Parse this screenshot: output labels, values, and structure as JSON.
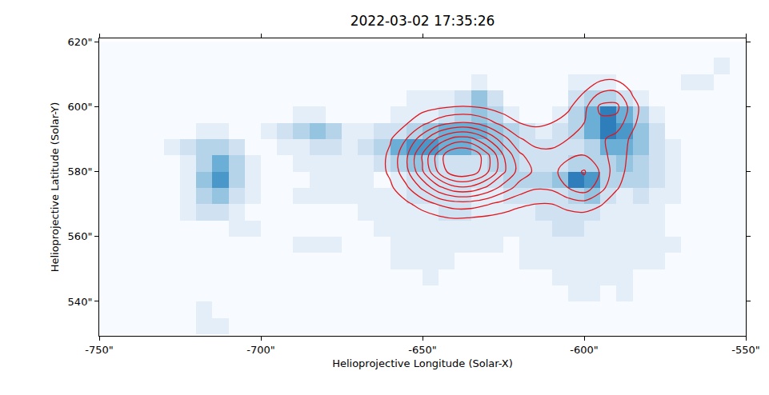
{
  "chart_data": {
    "type": "heatmap",
    "title": "2022-03-02 17:35:26",
    "x_label": "Helioprojective Longitude (Solar-X)",
    "y_label": "Helioprojective Latitude (Solar-Y)",
    "xlim": [
      -750,
      -550
    ],
    "ylim": [
      529.4,
      621
    ],
    "xticks": [
      {
        "value": -750,
        "label": "-750\""
      },
      {
        "value": -700,
        "label": "-700\""
      },
      {
        "value": -650,
        "label": "-650\""
      },
      {
        "value": -600,
        "label": "-600\""
      },
      {
        "value": -550,
        "label": "-550\""
      }
    ],
    "yticks": [
      {
        "value": 540,
        "label": "540\""
      },
      {
        "value": 560,
        "label": "560\""
      },
      {
        "value": 580,
        "label": "580\""
      },
      {
        "value": 600,
        "label": "600\""
      },
      {
        "value": 620,
        "label": "620\""
      }
    ],
    "grid": false,
    "heatmap": {
      "zlim": [
        0,
        10
      ],
      "x": [
        -747.5,
        -742.5,
        -737.5,
        -732.5,
        -727.5,
        -722.5,
        -717.5,
        -712.5,
        -707.5,
        -702.5,
        -697.5,
        -692.5,
        -687.5,
        -682.5,
        -677.5,
        -672.5,
        -667.5,
        -662.5,
        -657.5,
        -652.5,
        -647.5,
        -642.5,
        -637.5,
        -632.5,
        -627.5,
        -622.5,
        -617.5,
        -612.5,
        -607.5,
        -602.5,
        -597.5,
        -592.5,
        -587.5,
        -582.5,
        -577.5,
        -572.5,
        -567.5,
        -562.5,
        -557.5,
        -552.5
      ],
      "y": [
        532.5,
        537.5,
        542.5,
        547.5,
        552.5,
        557.5,
        562.5,
        567.5,
        572.5,
        577.5,
        582.5,
        587.5,
        592.5,
        597.5,
        602.5,
        607.5,
        612.5,
        617.5
      ],
      "z": [
        [
          0,
          0,
          0,
          0,
          0,
          0,
          1,
          1,
          0,
          0,
          0,
          0,
          0,
          0,
          0,
          0,
          0,
          0,
          0,
          0,
          0,
          0,
          0,
          0,
          0,
          0,
          0,
          0,
          0,
          0,
          0,
          0,
          0,
          0,
          0,
          0,
          0,
          0,
          0,
          0
        ],
        [
          0,
          0,
          0,
          0,
          0,
          0,
          1,
          0,
          0,
          0,
          0,
          0,
          0,
          0,
          0,
          0,
          0,
          0,
          0,
          0,
          0,
          0,
          0,
          0,
          0,
          0,
          0,
          0,
          0,
          0,
          0,
          0,
          0,
          0,
          0,
          0,
          0,
          0,
          0,
          0
        ],
        [
          0,
          0,
          0,
          0,
          0,
          0,
          0,
          0,
          0,
          0,
          0,
          0,
          0,
          0,
          0,
          0,
          0,
          0,
          0,
          0,
          0,
          0,
          0,
          0,
          0,
          0,
          0,
          0,
          0,
          1,
          1,
          0,
          1,
          0,
          0,
          0,
          0,
          0,
          0,
          0
        ],
        [
          0,
          0,
          0,
          0,
          0,
          0,
          0,
          0,
          0,
          0,
          0,
          0,
          0,
          0,
          0,
          0,
          0,
          0,
          0,
          0,
          1,
          0,
          0,
          0,
          0,
          0,
          0,
          0,
          1,
          1,
          1,
          1,
          1,
          0,
          0,
          0,
          0,
          0,
          0,
          0
        ],
        [
          0,
          0,
          0,
          0,
          0,
          0,
          0,
          0,
          0,
          0,
          0,
          0,
          0,
          0,
          0,
          0,
          0,
          0,
          1,
          1,
          1,
          1,
          0,
          0,
          0,
          0,
          1,
          1,
          1,
          1,
          1,
          1,
          1,
          1,
          1,
          0,
          0,
          0,
          0,
          0
        ],
        [
          0,
          0,
          0,
          0,
          0,
          0,
          0,
          0,
          0,
          0,
          0,
          0,
          1,
          1,
          1,
          0,
          0,
          0,
          1,
          1,
          1,
          1,
          1,
          1,
          1,
          0,
          1,
          1,
          1,
          1,
          1,
          1,
          1,
          1,
          1,
          1,
          0,
          0,
          0,
          0
        ],
        [
          0,
          0,
          0,
          0,
          0,
          0,
          0,
          0,
          1,
          1,
          0,
          0,
          0,
          0,
          0,
          0,
          0,
          1,
          1,
          1,
          1,
          1,
          1,
          1,
          1,
          1,
          1,
          1,
          2,
          2,
          1,
          1,
          1,
          1,
          1,
          0,
          0,
          0,
          0,
          0
        ],
        [
          0,
          0,
          0,
          0,
          0,
          1,
          2,
          2,
          1,
          0,
          0,
          0,
          0,
          0,
          0,
          0,
          1,
          1,
          1,
          1,
          1,
          2,
          2,
          1,
          1,
          1,
          1,
          2,
          2,
          2,
          2,
          1,
          1,
          1,
          1,
          0,
          0,
          0,
          0,
          0
        ],
        [
          0,
          0,
          0,
          0,
          0,
          1,
          3,
          4,
          2,
          1,
          0,
          0,
          1,
          1,
          1,
          1,
          1,
          1,
          1,
          2,
          2,
          2,
          2,
          1,
          1,
          2,
          2,
          2,
          2,
          3,
          4,
          2,
          1,
          2,
          1,
          1,
          0,
          0,
          0,
          0
        ],
        [
          0,
          0,
          0,
          0,
          0,
          1,
          4,
          6,
          3,
          1,
          0,
          0,
          0,
          1,
          1,
          1,
          1,
          0,
          1,
          2,
          2,
          2,
          2,
          2,
          2,
          3,
          3,
          3,
          4,
          7,
          6,
          3,
          3,
          3,
          2,
          1,
          0,
          0,
          0,
          0
        ],
        [
          0,
          0,
          0,
          0,
          0,
          1,
          3,
          5,
          3,
          1,
          0,
          0,
          1,
          1,
          1,
          1,
          1,
          2,
          3,
          4,
          3,
          2,
          2,
          2,
          3,
          3,
          2,
          2,
          2,
          3,
          3,
          3,
          4,
          3,
          2,
          1,
          0,
          0,
          0,
          0
        ],
        [
          0,
          0,
          0,
          0,
          1,
          2,
          3,
          3,
          2,
          0,
          0,
          1,
          1,
          2,
          2,
          1,
          2,
          3,
          5,
          6,
          6,
          5,
          5,
          4,
          4,
          3,
          2,
          2,
          2,
          2,
          3,
          5,
          5,
          4,
          2,
          1,
          0,
          0,
          0,
          0
        ],
        [
          0,
          0,
          0,
          0,
          0,
          0,
          1,
          1,
          0,
          0,
          1,
          2,
          3,
          4,
          3,
          1,
          1,
          2,
          2,
          3,
          4,
          5,
          5,
          5,
          4,
          3,
          2,
          1,
          2,
          3,
          5,
          7,
          6,
          4,
          2,
          0,
          0,
          0,
          0,
          0
        ],
        [
          0,
          0,
          0,
          0,
          0,
          0,
          0,
          0,
          0,
          0,
          0,
          0,
          1,
          1,
          0,
          0,
          0,
          0,
          1,
          1,
          1,
          2,
          3,
          4,
          3,
          1,
          0,
          0,
          1,
          3,
          5,
          7,
          5,
          3,
          1,
          0,
          0,
          0,
          0,
          0
        ],
        [
          0,
          0,
          0,
          0,
          0,
          0,
          0,
          0,
          0,
          0,
          0,
          0,
          0,
          0,
          0,
          0,
          0,
          0,
          0,
          1,
          1,
          1,
          2,
          4,
          2,
          0,
          0,
          0,
          0,
          2,
          3,
          3,
          2,
          1,
          0,
          0,
          0,
          0,
          0,
          0
        ],
        [
          0,
          0,
          0,
          0,
          0,
          0,
          0,
          0,
          0,
          0,
          0,
          0,
          0,
          0,
          0,
          0,
          0,
          0,
          0,
          0,
          0,
          0,
          0,
          1,
          0,
          0,
          0,
          0,
          0,
          1,
          1,
          1,
          0,
          0,
          0,
          0,
          1,
          1,
          0,
          0
        ],
        [
          0,
          0,
          0,
          0,
          0,
          0,
          0,
          0,
          0,
          0,
          0,
          0,
          0,
          0,
          0,
          0,
          0,
          0,
          0,
          0,
          0,
          0,
          0,
          0,
          0,
          0,
          0,
          0,
          0,
          0,
          0,
          0,
          0,
          0,
          0,
          0,
          0,
          0,
          1,
          0
        ],
        [
          0,
          0,
          0,
          0,
          0,
          0,
          0,
          0,
          0,
          0,
          0,
          0,
          0,
          0,
          0,
          0,
          0,
          0,
          0,
          0,
          0,
          0,
          0,
          0,
          0,
          0,
          0,
          0,
          0,
          0,
          0,
          0,
          0,
          0,
          0,
          0,
          0,
          0,
          0,
          0
        ]
      ]
    },
    "contours": {
      "color": "#e3161c",
      "levels": [
        10,
        20,
        30,
        40,
        50,
        60,
        70,
        80
      ],
      "x": [
        -670,
        -665,
        -660,
        -655,
        -650,
        -645,
        -640,
        -635,
        -630,
        -625,
        -620,
        -615,
        -610,
        -605,
        -600,
        -595,
        -590,
        -585,
        -580,
        -575
      ],
      "y": [
        560,
        565,
        570,
        575,
        580,
        585,
        590,
        595,
        600,
        605,
        610
      ],
      "z": [
        [
          0,
          0,
          0,
          0,
          1,
          1,
          2,
          1,
          1,
          1,
          1,
          0,
          1,
          1,
          1,
          1,
          0,
          0,
          0,
          0
        ],
        [
          0,
          0,
          1,
          2,
          4,
          6,
          8,
          7,
          6,
          5,
          3,
          3,
          3,
          4,
          4,
          3,
          2,
          1,
          0,
          0
        ],
        [
          0,
          1,
          3,
          8,
          14,
          21,
          25,
          25,
          21,
          16,
          12,
          10,
          10,
          14,
          16,
          11,
          5,
          2,
          1,
          0
        ],
        [
          1,
          3,
          8,
          18,
          32,
          47,
          57,
          57,
          48,
          36,
          26,
          21,
          22,
          30,
          36,
          24,
          11,
          4,
          2,
          1
        ],
        [
          1,
          4,
          12,
          27,
          49,
          72,
          88,
          87,
          72,
          52,
          36,
          28,
          27,
          35,
          41,
          29,
          14,
          6,
          3,
          1
        ],
        [
          1,
          4,
          12,
          28,
          51,
          75,
          91,
          90,
          73,
          50,
          32,
          24,
          23,
          28,
          30,
          24,
          15,
          7,
          3,
          1
        ],
        [
          1,
          3,
          9,
          20,
          36,
          53,
          64,
          63,
          50,
          34,
          21,
          16,
          16,
          20,
          23,
          22,
          16,
          8,
          3,
          1
        ],
        [
          0,
          2,
          4,
          9,
          17,
          25,
          30,
          30,
          24,
          16,
          10,
          8,
          10,
          14,
          20,
          28,
          26,
          12,
          3,
          1
        ],
        [
          0,
          0,
          1,
          3,
          6,
          8,
          10,
          10,
          8,
          5,
          4,
          4,
          5,
          8,
          17,
          32,
          33,
          14,
          3,
          0
        ],
        [
          0,
          0,
          0,
          1,
          1,
          2,
          2,
          2,
          2,
          1,
          1,
          1,
          2,
          4,
          9,
          18,
          19,
          8,
          2,
          0
        ],
        [
          0,
          0,
          0,
          0,
          0,
          0,
          0,
          0,
          0,
          0,
          0,
          0,
          1,
          1,
          2,
          4,
          4,
          2,
          0,
          0
        ]
      ]
    }
  }
}
